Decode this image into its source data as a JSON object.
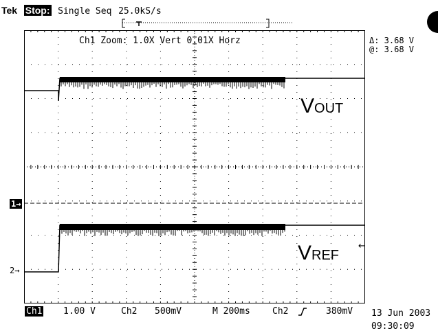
{
  "header": {
    "brand": "Tek",
    "state": "Stop:",
    "mode": "Single Seq",
    "rate": "25.0kS/s"
  },
  "zoom_info": "Ch1 Zoom:   1.0X Vert  0.01X Horz",
  "cursor": {
    "delta": "Δ: 3.68 V",
    "at": "@: 3.68 V"
  },
  "traces": {
    "vout_label": "V",
    "vout_sub": "OUT",
    "vref_label": "V",
    "vref_sub": "REF"
  },
  "markers": {
    "ch1": "1→",
    "ch2": "2→"
  },
  "footer": {
    "ch1_badge": "Ch1",
    "ch1_scale": "1.00 V",
    "ch2_label": "Ch2",
    "ch2_scale": "500mV",
    "time": "M 200ms",
    "trigger_src": "Ch2",
    "trigger_level": "380mV",
    "date": "13 Jun 2003",
    "clock": "09:30:09"
  },
  "colors": {
    "trace": "#000000",
    "grid": "#000000",
    "background": "#ffffff"
  }
}
